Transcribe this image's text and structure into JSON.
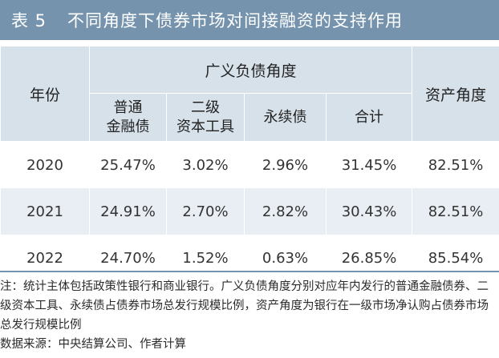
{
  "title": {
    "number": "表 5",
    "text": "不同角度下债券市场对间接融资的支持作用"
  },
  "header": {
    "year_label": "年份",
    "group_label": "广义负债角度",
    "sub_cols": [
      [
        "普通",
        "金融债"
      ],
      [
        "二级",
        "资本工具"
      ],
      [
        "永续债"
      ],
      [
        "合计"
      ]
    ],
    "asset_label": "资产角度"
  },
  "rows": [
    [
      "2020",
      "25.47%",
      "3.02%",
      "2.96%",
      "31.45%",
      "82.51%"
    ],
    [
      "2021",
      "24.91%",
      "2.70%",
      "2.82%",
      "30.43%",
      "82.51%"
    ],
    [
      "2022",
      "24.70%",
      "1.52%",
      "0.63%",
      "26.85%",
      "85.54%"
    ]
  ],
  "note": "注：统计主体包括政策性银行和商业银行。广义负债角度分别对应年内发行的普通金融债券、二级资本工具、永续债占债券市场总发行规模比例，资产角度为银行在一级市场净认购占债券市场总发行规模比例",
  "source": "数据来源：中央结算公司、作者计算",
  "colors": {
    "title_bg": "#7593ad",
    "header_bg": "#d7e1ea",
    "stripe_bg": "#e8eef4"
  }
}
